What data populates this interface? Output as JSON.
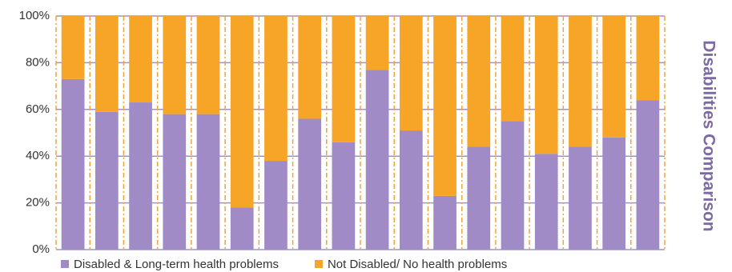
{
  "chart_data": {
    "type": "stacked_bar",
    "title": "Disabilities Comparison",
    "categories": [
      null,
      null,
      null,
      null,
      null,
      null,
      null,
      null,
      null,
      null,
      null,
      null,
      null,
      null,
      null,
      null,
      null,
      null
    ],
    "series": [
      {
        "name": "Disabled & Long-term health problems",
        "color": "#a18bc6",
        "values": [
          73,
          59,
          63,
          58,
          58,
          18,
          38,
          56,
          46,
          77,
          51,
          23,
          44,
          55,
          41,
          44,
          48,
          64
        ]
      },
      {
        "name": "Not Disabled/ No health problems",
        "color": "#f7a527",
        "values": [
          27,
          41,
          37,
          42,
          42,
          82,
          62,
          44,
          54,
          23,
          49,
          77,
          56,
          45,
          59,
          56,
          52,
          36
        ]
      }
    ],
    "ylim": [
      0,
      100
    ],
    "yticks": [
      {
        "value": 0,
        "label": "0%"
      },
      {
        "value": 20,
        "label": "20%"
      },
      {
        "value": 40,
        "label": "40%"
      },
      {
        "value": 60,
        "label": "60%"
      },
      {
        "value": 80,
        "label": "80%"
      },
      {
        "value": 100,
        "label": "100%"
      }
    ],
    "grid": true,
    "legend": "bottom"
  }
}
